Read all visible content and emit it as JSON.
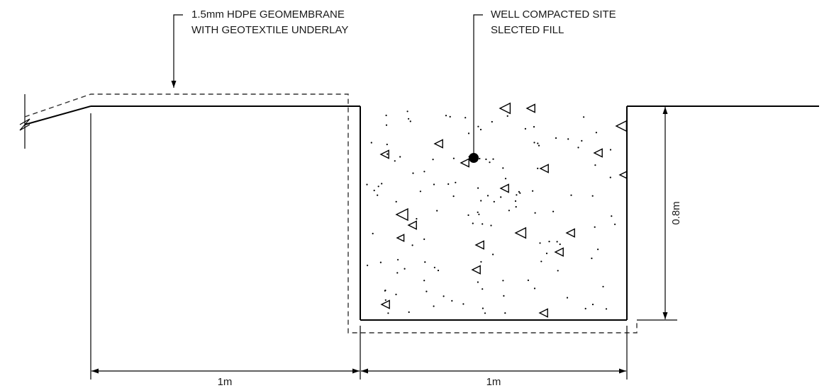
{
  "annotations": {
    "membrane_line1": "1.5mm HDPE GEOMEMBRANE",
    "membrane_line2": "WITH GEOTEXTILE UNDERLAY",
    "fill_line1": "WELL COMPACTED SITE",
    "fill_line2": "SLECTED FILL"
  },
  "dimensions": {
    "left_width": "1m",
    "right_width": "1m",
    "depth": "0.8m"
  },
  "colors": {
    "line": "#000000",
    "dashed_membrane": "#333333",
    "background": "#ffffff"
  },
  "legend_symbols": [
    "triangle-aggregate",
    "dot-aggregate"
  ]
}
